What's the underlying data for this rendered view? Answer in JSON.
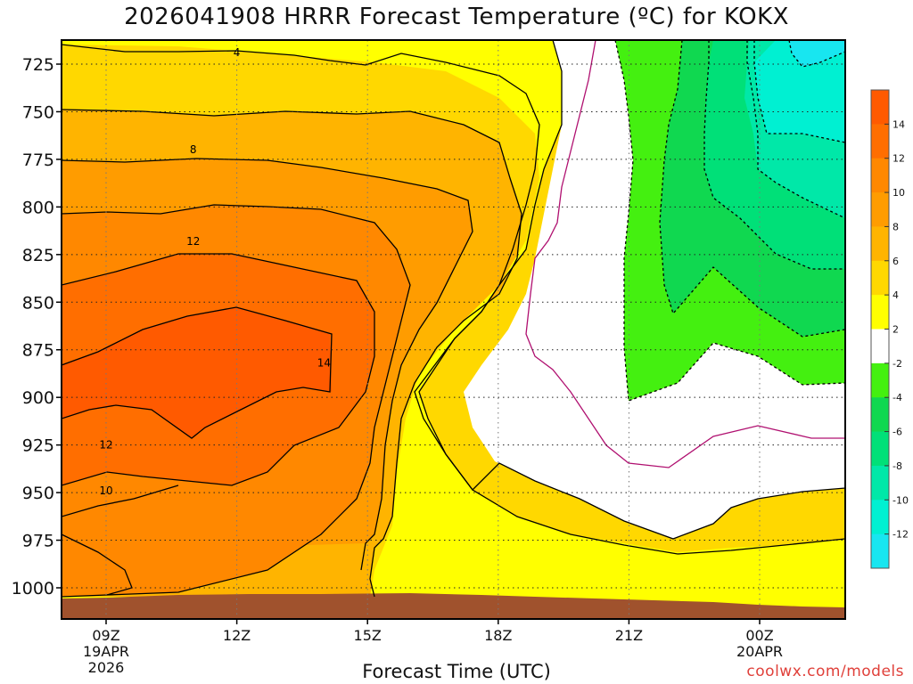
{
  "title": "2026041908 HRRR Forecast Temperature (ºC) for KOKX",
  "credit": "coolwx.com/models",
  "chart_data": {
    "type": "heatmap",
    "title": "2026041908 HRRR Forecast Temperature (ºC) for KOKX",
    "xlabel": "Forecast Time (UTC)",
    "ylabel": "",
    "x_range_hours": [
      8,
      26
    ],
    "y_range_hpa": [
      710,
      1015
    ],
    "y_scale": "pressure, reversed",
    "grid": true,
    "yticks": [
      725,
      750,
      775,
      800,
      825,
      850,
      875,
      900,
      925,
      950,
      975,
      1000
    ],
    "xticks": [
      {
        "hour": 9,
        "label": "09Z",
        "sub": [
          "19APR",
          "2026"
        ]
      },
      {
        "hour": 12,
        "label": "12Z",
        "sub": []
      },
      {
        "hour": 15,
        "label": "15Z",
        "sub": []
      },
      {
        "hour": 18,
        "label": "18Z",
        "sub": []
      },
      {
        "hour": 21,
        "label": "21Z",
        "sub": []
      },
      {
        "hour": 24,
        "label": "00Z",
        "sub": [
          "20APR"
        ]
      }
    ],
    "contour_labels": [
      {
        "text": "4",
        "hour": 12.0,
        "hpa": 719
      },
      {
        "text": "8",
        "hour": 11.0,
        "hpa": 770
      },
      {
        "text": "12",
        "hour": 11.0,
        "hpa": 818
      },
      {
        "text": "14",
        "hour": 14.0,
        "hpa": 882
      },
      {
        "text": "12",
        "hour": 9.0,
        "hpa": 925
      },
      {
        "text": "10",
        "hour": 9.0,
        "hpa": 949
      }
    ],
    "colorbar": {
      "levels": [
        -14,
        -12,
        -10,
        -8,
        -6,
        -4,
        -2,
        2,
        4,
        6,
        8,
        10,
        12,
        14,
        16
      ],
      "tick_labels": [
        "-12",
        "-10",
        "-8",
        "-6",
        "-4",
        "-2",
        "2",
        "4",
        "6",
        "8",
        "10",
        "12",
        "14"
      ],
      "colors": [
        "#18e6f0",
        "#00f0d2",
        "#00e8a8",
        "#00e078",
        "#10d850",
        "#44f010",
        "#ffffff",
        "#ffff00",
        "#ffd800",
        "#ffb400",
        "#ff9c00",
        "#ff8800",
        "#ff6e00",
        "#ff5a00"
      ]
    },
    "regions": [
      {
        "name": "t4to6",
        "hpa_top": 710,
        "hpa_bottom": 1007,
        "hour_start": 8,
        "hour_end": 26,
        "color": "#ffd800"
      },
      {
        "name": "t6to8",
        "color": "#ffb400"
      },
      {
        "name": "t8to10",
        "color": "#ff9c00"
      },
      {
        "name": "t10to12",
        "color": "#ff8800"
      },
      {
        "name": "t12to14",
        "color": "#ff6e00"
      },
      {
        "name": "t14plus",
        "color": "#ff5a00"
      },
      {
        "name": "t2to4",
        "color": "#ffff00"
      },
      {
        "name": "tminus2to2",
        "color": "#ffffff"
      },
      {
        "name": "tminus4to2",
        "color": "#44f010"
      },
      {
        "name": "tminus6to4",
        "color": "#10d850"
      },
      {
        "name": "tminus8to6",
        "color": "#00e078"
      },
      {
        "name": "tminus10to8",
        "color": "#00e8a8"
      },
      {
        "name": "tminus12to10",
        "color": "#00f0d2"
      }
    ],
    "ground_color": "#a0522d"
  }
}
